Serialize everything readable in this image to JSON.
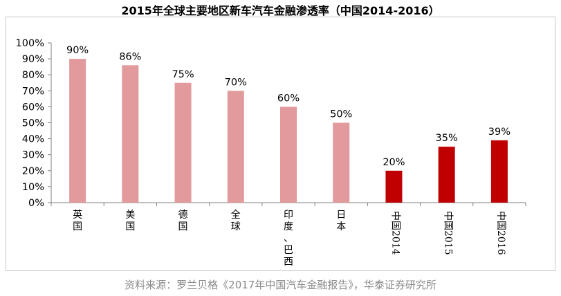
{
  "title": "2015年全球主要地区新车汽车金融渗透率（中国2014-2016）",
  "source": "资料来源：罗兰贝格《2017年中国汽车金融报告》，华泰证券研究所",
  "chart_data": {
    "type": "bar",
    "title": "2015年全球主要地区新车汽车金融渗透率（中国2014-2016）",
    "categories": [
      "英国",
      "美国",
      "德国",
      "全球",
      "印度、巴西",
      "日本",
      "中国2014",
      "中国2015",
      "中国2016"
    ],
    "values": [
      90,
      86,
      75,
      70,
      60,
      50,
      20,
      35,
      39
    ],
    "value_labels": [
      "90%",
      "86%",
      "75%",
      "70%",
      "60%",
      "50%",
      "20%",
      "35%",
      "39%"
    ],
    "bar_colors": [
      "#e39a9c",
      "#e39a9c",
      "#e39a9c",
      "#e39a9c",
      "#e39a9c",
      "#e39a9c",
      "#c00000",
      "#c00000",
      "#c00000"
    ],
    "yticks": [
      "0%",
      "10%",
      "20%",
      "30%",
      "40%",
      "50%",
      "60%",
      "70%",
      "80%",
      "90%",
      "100%"
    ],
    "ylim": [
      0,
      100
    ],
    "xlabel": "",
    "ylabel": "",
    "grid": false,
    "legend": "none"
  }
}
